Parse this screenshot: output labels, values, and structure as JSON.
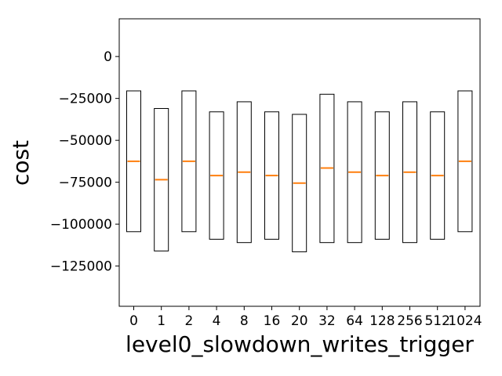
{
  "chart_data": {
    "type": "boxplot",
    "title": "",
    "xlabel": "level0_slowdown_writes_trigger",
    "ylabel": "cost",
    "categories": [
      "0",
      "1",
      "2",
      "4",
      "8",
      "16",
      "20",
      "32",
      "64",
      "128",
      "256",
      "512",
      "1024"
    ],
    "highlighted_category": "20",
    "highlight_color": "#ff0000",
    "box_color": "#000000",
    "median_color": "#ff7f0e",
    "boxes": [
      {
        "q1": -104500,
        "median": -62500,
        "q3": -20500
      },
      {
        "q1": -116000,
        "median": -73500,
        "q3": -31000
      },
      {
        "q1": -104500,
        "median": -62500,
        "q3": -20500
      },
      {
        "q1": -109000,
        "median": -71000,
        "q3": -33000
      },
      {
        "q1": -111000,
        "median": -69000,
        "q3": -27000
      },
      {
        "q1": -109000,
        "median": -71000,
        "q3": -33000
      },
      {
        "q1": -116500,
        "median": -75500,
        "q3": -34500
      },
      {
        "q1": -111000,
        "median": -66500,
        "q3": -22500
      },
      {
        "q1": -111000,
        "median": -69000,
        "q3": -27000
      },
      {
        "q1": -109000,
        "median": -71000,
        "q3": -33000
      },
      {
        "q1": -111000,
        "median": -69000,
        "q3": -27000
      },
      {
        "q1": -109000,
        "median": -71000,
        "q3": -33000
      },
      {
        "q1": -104500,
        "median": -62500,
        "q3": -20500
      }
    ],
    "yticks": [
      0,
      -25000,
      -50000,
      -75000,
      -100000,
      -125000
    ],
    "ytick_labels": [
      "0",
      "−25000",
      "−50000",
      "−75000",
      "−100000",
      "−125000"
    ],
    "ylim": [
      -149000,
      22500
    ],
    "grid": false
  }
}
